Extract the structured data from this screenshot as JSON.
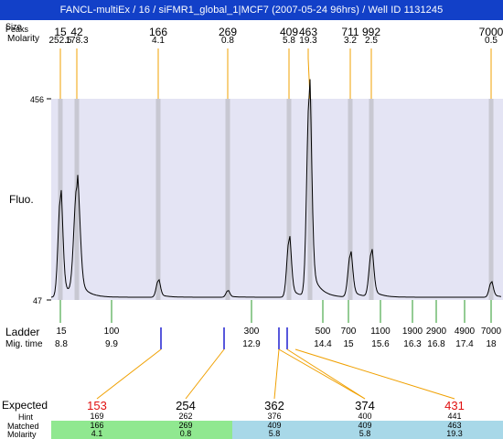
{
  "title": "FANCL-multiEx / 16 / siFMR1_global_1|MCF7 (2007-05-24 96hrs) / Well ID 1131245",
  "header": {
    "size_label": "Size",
    "peaks_label": "Peaks",
    "molarity_label": "Molarity"
  },
  "peaks": [
    {
      "size": "15",
      "molarity": "252.5"
    },
    {
      "size": "42",
      "molarity": "178.3"
    },
    {
      "size": "166",
      "molarity": "4.1"
    },
    {
      "size": "269",
      "molarity": "0.8"
    },
    {
      "size": "409",
      "molarity": "5.8"
    },
    {
      "size": "463",
      "molarity": "19.3"
    },
    {
      "size": "711",
      "molarity": "3.2"
    },
    {
      "size": "992",
      "molarity": "2.5"
    },
    {
      "size": "7000",
      "molarity": "0.5"
    }
  ],
  "axis": {
    "y_max": "456",
    "y_min": "47",
    "y_title": "Fluo."
  },
  "ladder": {
    "label": "Ladder",
    "mig_label": "Mig. time",
    "items": [
      {
        "size": "15",
        "time": "8.8"
      },
      {
        "size": "100",
        "time": "9.9"
      },
      {
        "size": "300",
        "time": "12.9"
      },
      {
        "size": "500",
        "time": "14.4"
      },
      {
        "size": "700",
        "time": "15"
      },
      {
        "size": "1100",
        "time": "15.6"
      },
      {
        "size": "1900",
        "time": "16.3"
      },
      {
        "size": "2900",
        "time": "16.8"
      },
      {
        "size": "4900",
        "time": "17.4"
      },
      {
        "size": "7000",
        "time": "18"
      }
    ]
  },
  "bottom": {
    "expected_label": "Expected",
    "hint_label": "Hint",
    "matched_label": "Matched",
    "molarity_label": "Molarity",
    "columns": [
      {
        "expected": "153",
        "hint": "169",
        "matched": "166",
        "molarity": "4.1",
        "status": "red"
      },
      {
        "expected": "254",
        "hint": "262",
        "matched": "269",
        "molarity": "0.8",
        "status": "black"
      },
      {
        "expected": "362",
        "hint": "376",
        "matched": "409",
        "molarity": "5.8",
        "status": "black"
      },
      {
        "expected": "374",
        "hint": "400",
        "matched": "409",
        "molarity": "5.8",
        "status": "black"
      },
      {
        "expected": "431",
        "hint": "441",
        "matched": "463",
        "molarity": "19.3",
        "status": "red"
      }
    ]
  },
  "colors": {
    "title_bg": "#1240c8",
    "plot_bg": "#e4e4f4",
    "band": "#c8c8d2",
    "trace": "#000000",
    "callout": "#f0a000",
    "ladder_tick": "#2a9a2a",
    "marker": "#2020d0",
    "matched_green": "#90e890",
    "matched_blue": "#a8d8e8",
    "expected_red": "#e01010"
  }
}
